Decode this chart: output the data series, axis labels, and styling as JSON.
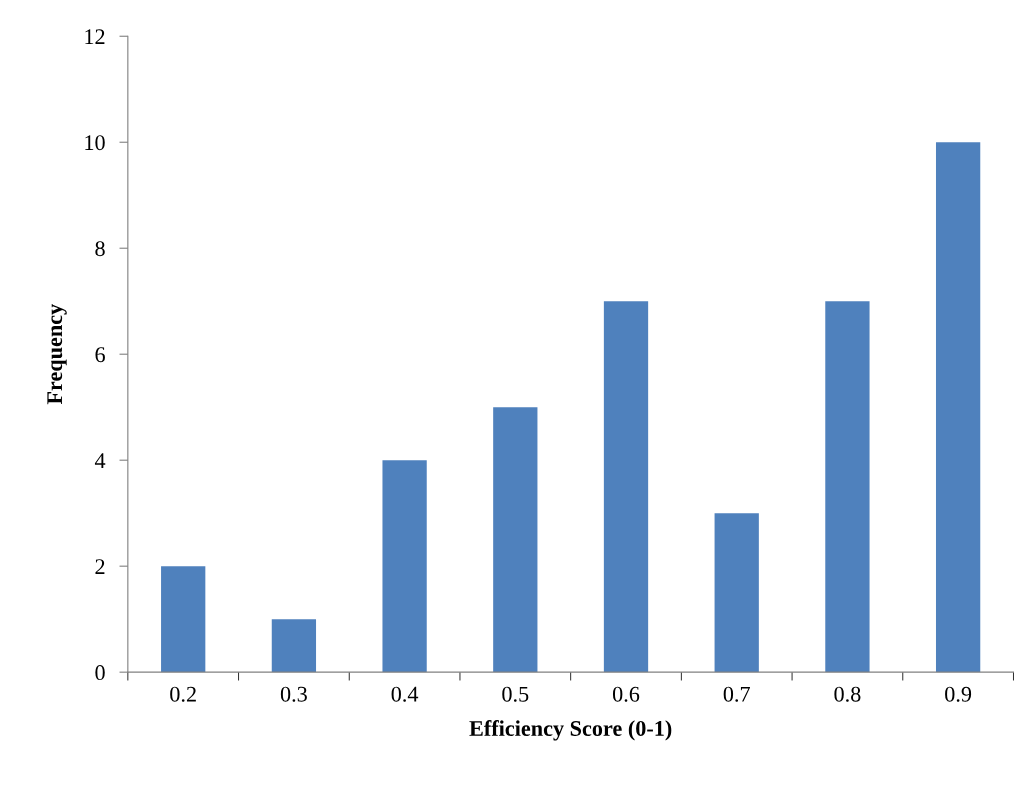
{
  "chart_data": {
    "type": "bar",
    "xlabel": "Efficiency Score (0-1)",
    "ylabel": "Frequency",
    "categories": [
      "0.2",
      "0.3",
      "0.4",
      "0.5",
      "0.6",
      "0.7",
      "0.8",
      "0.9"
    ],
    "values": [
      2,
      1,
      4,
      5,
      7,
      3,
      7,
      10
    ],
    "color": "#4f81bd",
    "ylim": [
      0,
      12
    ],
    "yticks": [
      0,
      2,
      4,
      6,
      8,
      10,
      12
    ],
    "grid": false,
    "legend": false
  }
}
